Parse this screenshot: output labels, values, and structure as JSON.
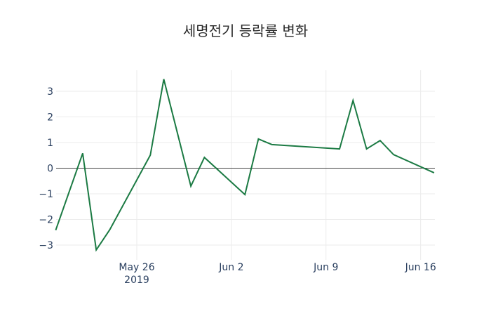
{
  "title": "세명전기 등락률 변화",
  "colors": {
    "line": "#1b7a43",
    "grid": "#ebebeb",
    "zeroline": "#444444"
  },
  "chart_data": {
    "type": "line",
    "title": "세명전기 등락률 변화",
    "xlabel": "",
    "ylabel": "",
    "x": [
      "2019-05-20",
      "2019-05-22",
      "2019-05-23",
      "2019-05-24",
      "2019-05-27",
      "2019-05-28",
      "2019-05-30",
      "2019-05-31",
      "2019-06-03",
      "2019-06-04",
      "2019-06-05",
      "2019-06-10",
      "2019-06-11",
      "2019-06-12",
      "2019-06-13",
      "2019-06-14",
      "2019-06-17"
    ],
    "series": [
      {
        "name": "등락률",
        "values": [
          -2.42,
          0.58,
          -3.19,
          -2.4,
          0.51,
          3.47,
          -0.7,
          0.42,
          -1.03,
          1.14,
          0.92,
          0.75,
          2.64,
          0.75,
          1.08,
          0.53,
          -0.18
        ]
      }
    ],
    "x_ticks": [
      "May 26\n2019",
      "Jun 2",
      "Jun 9",
      "Jun 16"
    ],
    "y_ticks": [
      3,
      2,
      1,
      0,
      -1,
      -2,
      -3
    ],
    "y_tick_labels": [
      "3",
      "2",
      "1",
      "0",
      "−1",
      "−2",
      "−3"
    ],
    "ylim": [
      -3.4,
      3.9
    ],
    "grid": true,
    "legend": "none"
  },
  "axis": {
    "x_tick_labels": [
      "May 26",
      "Jun 2",
      "Jun 9",
      "Jun 16"
    ],
    "x_year_label": "2019",
    "y_tick_labels": [
      "3",
      "2",
      "1",
      "0",
      "−1",
      "−2",
      "−3"
    ]
  }
}
